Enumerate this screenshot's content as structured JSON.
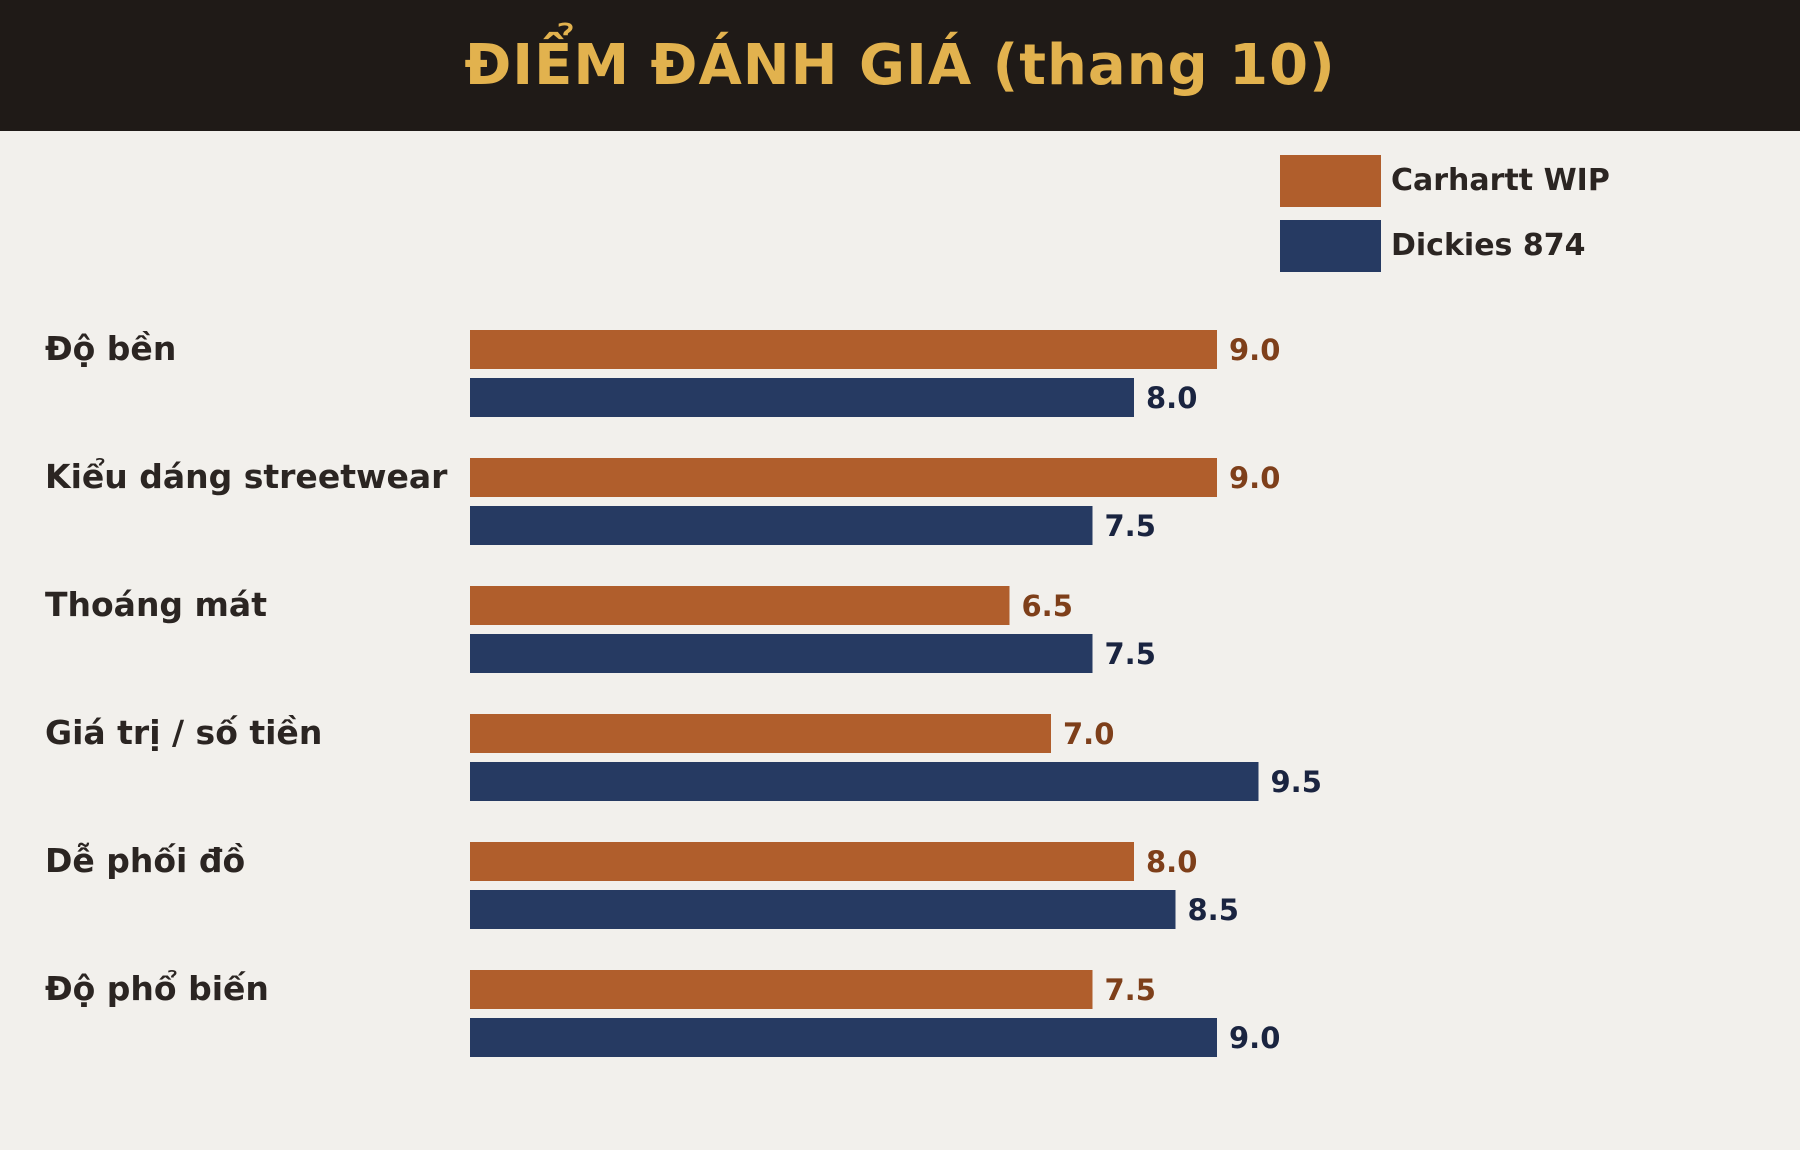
{
  "colors": {
    "header_bg": "#1f1a17",
    "title": "#e2b24e",
    "background": "#f2f0ec",
    "text": "#2b2522"
  },
  "chart_data": {
    "type": "bar",
    "orientation": "horizontal",
    "title": "ĐIỂM ĐÁNH GIÁ (thang 10)",
    "categories": [
      "Độ bền",
      "Kiểu dáng streetwear",
      "Thoáng mát",
      "Giá trị / số tiền",
      "Dễ phối đồ",
      "Độ phổ biến"
    ],
    "series": [
      {
        "name": "Carhartt WIP",
        "color": "#b05e2c",
        "label_color": "#7e3f1a",
        "values": [
          9.0,
          9.0,
          6.5,
          7.0,
          8.0,
          7.5
        ]
      },
      {
        "name": "Dickies 874",
        "color": "#263a62",
        "label_color": "#1a2440",
        "values": [
          8.0,
          7.5,
          7.5,
          9.5,
          8.5,
          9.0
        ]
      }
    ],
    "xlim": [
      0,
      10
    ],
    "grid": false,
    "axes_visible": false,
    "legend_position": "top-right",
    "value_label_decimals": 1
  }
}
